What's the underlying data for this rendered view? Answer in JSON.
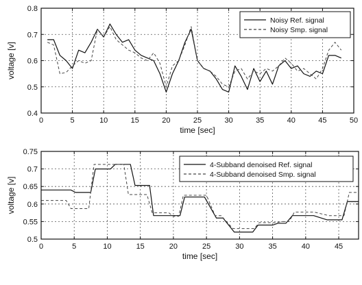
{
  "chart_data": [
    {
      "type": "line",
      "title": "",
      "xlabel": "time [sec]",
      "ylabel": "voltage [v]",
      "xlim": [
        0,
        50
      ],
      "ylim": [
        0.4,
        0.8
      ],
      "xticks": [
        0,
        5,
        10,
        15,
        20,
        25,
        30,
        35,
        40,
        45,
        50
      ],
      "xticklabels": [
        "0",
        "5",
        "10",
        "15",
        "20",
        "25",
        "30",
        "35",
        "40",
        "45",
        "50"
      ],
      "yticks": [
        0.4,
        0.5,
        0.6,
        0.7,
        0.8
      ],
      "yticklabels": [
        "0.4",
        "0.5",
        "0.6",
        "0.7",
        "0.8"
      ],
      "grid": true,
      "legend_position": "top-right",
      "series": [
        {
          "name": "Noisy Ref. signal",
          "style": "solid",
          "x": [
            1,
            2,
            3,
            4,
            5,
            6,
            7,
            8,
            9,
            10,
            11,
            12,
            13,
            14,
            15,
            16,
            17,
            18,
            19,
            20,
            21,
            22,
            23,
            24,
            25,
            26,
            27,
            28,
            29,
            30,
            31,
            32,
            33,
            34,
            35,
            36,
            37,
            38,
            39,
            40,
            41,
            42,
            43,
            44,
            45,
            46,
            47,
            48
          ],
          "values": [
            0.68,
            0.68,
            0.62,
            0.6,
            0.57,
            0.64,
            0.63,
            0.67,
            0.72,
            0.69,
            0.74,
            0.7,
            0.67,
            0.68,
            0.64,
            0.62,
            0.61,
            0.6,
            0.55,
            0.48,
            0.55,
            0.6,
            0.67,
            0.72,
            0.6,
            0.57,
            0.56,
            0.53,
            0.49,
            0.48,
            0.58,
            0.54,
            0.49,
            0.57,
            0.52,
            0.56,
            0.51,
            0.58,
            0.6,
            0.57,
            0.58,
            0.55,
            0.54,
            0.56,
            0.55,
            0.62,
            0.62,
            0.61
          ]
        },
        {
          "name": "Noisy Smp. signal",
          "style": "dashed",
          "x": [
            1,
            2,
            3,
            4,
            5,
            6,
            7,
            8,
            9,
            10,
            11,
            12,
            13,
            14,
            15,
            16,
            17,
            18,
            19,
            20,
            21,
            22,
            23,
            24,
            25,
            26,
            27,
            28,
            29,
            30,
            31,
            32,
            33,
            34,
            35,
            36,
            37,
            38,
            39,
            40,
            41,
            42,
            43,
            44,
            45,
            46,
            47,
            48
          ],
          "values": [
            0.67,
            0.66,
            0.55,
            0.555,
            0.58,
            0.6,
            0.59,
            0.6,
            0.72,
            0.69,
            0.73,
            0.68,
            0.66,
            0.64,
            0.63,
            0.61,
            0.6,
            0.63,
            0.59,
            0.5,
            0.58,
            0.6,
            0.66,
            0.73,
            0.6,
            0.57,
            0.56,
            0.54,
            0.51,
            0.5,
            0.56,
            0.57,
            0.53,
            0.56,
            0.55,
            0.57,
            0.56,
            0.58,
            0.61,
            0.59,
            0.56,
            0.57,
            0.55,
            0.53,
            0.57,
            0.64,
            0.67,
            0.64
          ]
        }
      ]
    },
    {
      "type": "line",
      "title": "",
      "xlabel": "time [sec]",
      "ylabel": "voltage [v]",
      "xlim": [
        0,
        48
      ],
      "ylim": [
        0.5,
        0.75
      ],
      "xticks": [
        0,
        5,
        10,
        15,
        20,
        25,
        30,
        35,
        40,
        45
      ],
      "xticklabels": [
        "0",
        "5",
        "10",
        "15",
        "20",
        "25",
        "30",
        "35",
        "40",
        "45"
      ],
      "yticks": [
        0.5,
        0.55,
        0.6,
        0.65,
        0.7,
        0.75
      ],
      "yticklabels": [
        "0.5",
        "0.55",
        "0.6",
        "0.65",
        "0.7",
        "0.75"
      ],
      "grid": true,
      "legend_position": "top-right",
      "series": [
        {
          "name": "4-Subband denoised Ref. signal",
          "style": "solid",
          "x": [
            0,
            4.5,
            5.2,
            7.5,
            8.2,
            10.5,
            11.2,
            13.5,
            14.2,
            16.4,
            17,
            19.5,
            20.2,
            21,
            21.7,
            24,
            24.7,
            26.5,
            27.5,
            29.2,
            30,
            32,
            32.8,
            35,
            35.8,
            37,
            38,
            40.5,
            41.2,
            43.2,
            44,
            45.5,
            46.3,
            48
          ],
          "values": [
            0.64,
            0.64,
            0.633,
            0.633,
            0.7,
            0.7,
            0.713,
            0.713,
            0.653,
            0.653,
            0.567,
            0.567,
            0.567,
            0.567,
            0.62,
            0.62,
            0.62,
            0.56,
            0.56,
            0.52,
            0.52,
            0.52,
            0.54,
            0.54,
            0.545,
            0.545,
            0.567,
            0.567,
            0.567,
            0.555,
            0.555,
            0.555,
            0.607,
            0.607
          ]
        },
        {
          "name": "4-Subband denoised Smp. signal",
          "style": "dashed",
          "x": [
            0,
            3.8,
            4.5,
            7.2,
            8,
            10.3,
            11,
            12.5,
            13.2,
            16,
            16.8,
            19.3,
            20,
            20.8,
            21.5,
            24.2,
            25,
            26.3,
            27.2,
            29,
            29.8,
            32.2,
            33,
            35.5,
            36.3,
            37.5,
            38.3,
            40.5,
            41.3,
            43.5,
            44.3,
            45.8,
            46.6,
            48
          ],
          "values": [
            0.61,
            0.61,
            0.587,
            0.587,
            0.713,
            0.713,
            0.713,
            0.713,
            0.627,
            0.627,
            0.575,
            0.575,
            0.565,
            0.565,
            0.625,
            0.625,
            0.625,
            0.567,
            0.567,
            0.53,
            0.53,
            0.53,
            0.547,
            0.547,
            0.55,
            0.55,
            0.577,
            0.577,
            0.577,
            0.567,
            0.567,
            0.567,
            0.633,
            0.633
          ]
        }
      ]
    }
  ]
}
